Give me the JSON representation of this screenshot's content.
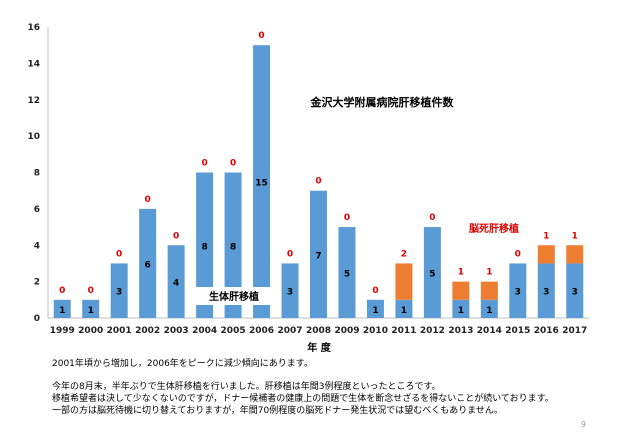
{
  "chart_data": {
    "type": "bar",
    "stacked": true,
    "title": "金沢大学附属病院肝移植件数",
    "xlabel": "年 度",
    "ylabel": "",
    "ylim": [
      0,
      16
    ],
    "yticks": [
      0,
      2,
      4,
      6,
      8,
      10,
      12,
      14,
      16
    ],
    "categories": [
      "1999",
      "2000",
      "2001",
      "2002",
      "2003",
      "2004",
      "2005",
      "2006",
      "2007",
      "2008",
      "2009",
      "2010",
      "2011",
      "2012",
      "2013",
      "2014",
      "2015",
      "2016",
      "2017"
    ],
    "series": [
      {
        "name": "生体肝移植",
        "color": "#5b9bd5",
        "values": [
          1,
          1,
          3,
          6,
          4,
          8,
          8,
          15,
          3,
          7,
          5,
          1,
          1,
          5,
          1,
          1,
          3,
          3,
          3
        ]
      },
      {
        "name": "脳死肝移植",
        "color": "#ed7d31",
        "values": [
          0,
          0,
          0,
          0,
          0,
          0,
          0,
          0,
          0,
          0,
          0,
          0,
          2,
          0,
          1,
          1,
          0,
          1,
          1
        ]
      }
    ],
    "data_labels_inner": [
      "1",
      "1",
      "3",
      "6",
      "4",
      "8",
      "8",
      "15",
      "3",
      "7",
      "5",
      "1",
      "1",
      "5",
      "1",
      "1",
      "3",
      "3",
      "3"
    ],
    "data_labels_top": [
      "0",
      "0",
      "0",
      "0",
      "0",
      "0",
      "0",
      "0",
      "0",
      "0",
      "0",
      "0",
      "2",
      "0",
      "1",
      "1",
      "0",
      "1",
      "1"
    ],
    "grid": false,
    "legend": "inline"
  },
  "notes": {
    "line1": "2001年頃から増加し，2006年をピークに減少傾向にあります。",
    "line2": "今年の8月末，半年ぶりで生体肝移植を行いました。肝移植は年間3例程度といったところです。",
    "line3": "移植希望者は決して少なくないのですが，ドナー候補者の健康上の問題で生体を断念せざるを得ないことが続いております。",
    "line4": "一部の方は脳死待機に切り替えておりますが，年間70例程度の脳死ドナー発生状況では望むべくもありません。"
  },
  "page_number": "9"
}
